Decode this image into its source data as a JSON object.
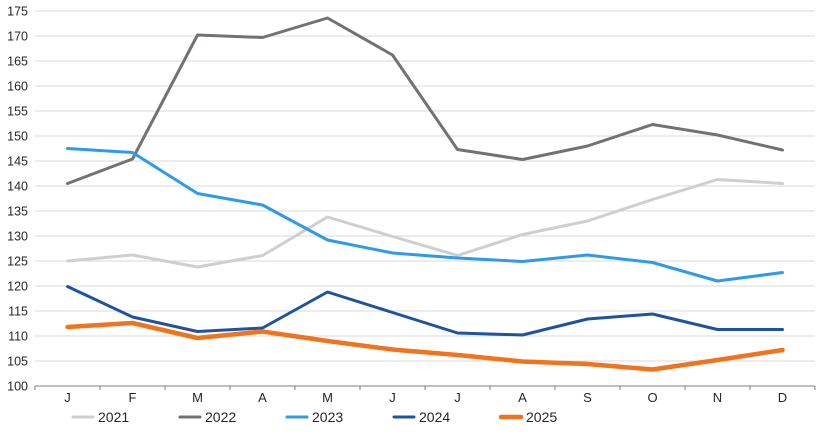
{
  "chart_data": {
    "type": "line",
    "title": "",
    "xlabel": "",
    "ylabel": "",
    "x_categories": [
      "J",
      "F",
      "M",
      "A",
      "M",
      "J",
      "J",
      "A",
      "S",
      "O",
      "N",
      "D"
    ],
    "y_axis": {
      "min": 100,
      "max": 175,
      "step": 5,
      "tick_labels": [
        "100",
        "105",
        "110",
        "115",
        "120",
        "125",
        "130",
        "135",
        "140",
        "145",
        "150",
        "155",
        "160",
        "165",
        "170",
        "175"
      ]
    },
    "grid": true,
    "gridline_color": "#D9D9D9",
    "axis_line_color": "#808080",
    "label_color": "#262626",
    "legend_position": "bottom",
    "series": [
      {
        "name": "2021",
        "color": "#D0CECE",
        "stroke_width": 3,
        "values": [
          125.0,
          126.2,
          123.8,
          126.1,
          133.8,
          129.9,
          126.1,
          130.3,
          133.0,
          137.3,
          141.3,
          140.5
        ]
      },
      {
        "name": "2022",
        "color": "#757171",
        "stroke_width": 3,
        "values": [
          140.5,
          145.4,
          170.2,
          169.7,
          173.6,
          166.2,
          147.3,
          145.3,
          148.0,
          152.3,
          150.2,
          147.2
        ]
      },
      {
        "name": "2023",
        "color": "#2F9BE8",
        "stroke_width": 3,
        "values": [
          147.5,
          146.7,
          138.5,
          136.2,
          129.2,
          126.6,
          125.6,
          124.9,
          126.2,
          124.7,
          121.0,
          122.7
        ]
      },
      {
        "name": "2024",
        "color": "#1F53A0",
        "stroke_width": 3,
        "values": [
          119.9,
          113.8,
          110.9,
          111.6,
          118.8,
          114.7,
          110.6,
          110.2,
          113.4,
          114.4,
          111.3,
          111.3
        ]
      },
      {
        "name": "2025",
        "color": "#F0731E",
        "stroke_width": 4.5,
        "values": [
          111.8,
          112.6,
          109.6,
          110.9,
          109.0,
          107.3,
          106.2,
          104.9,
          104.4,
          103.3,
          105.2,
          107.2
        ]
      }
    ]
  }
}
